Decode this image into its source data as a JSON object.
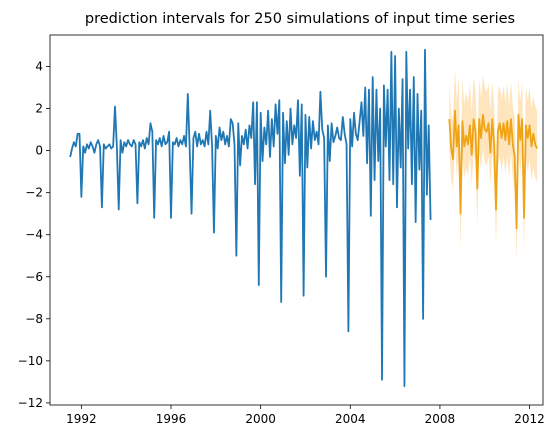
{
  "chart_data": {
    "type": "line",
    "title": "prediction intervals for 250 simulations of input time series",
    "xlabel": "",
    "ylabel": "",
    "x_ticks": [
      1992,
      1996,
      2000,
      2004,
      2008,
      2012
    ],
    "y_ticks": [
      4,
      2,
      0,
      -2,
      -4,
      -6,
      -8,
      -10,
      -12
    ],
    "xlim": [
      1990.6,
      2012.6
    ],
    "ylim": [
      -12.1,
      5.5
    ],
    "grid": false,
    "history": {
      "color": "#1f77b4",
      "start": 1991.5,
      "step": 0.0833333,
      "values": [
        -0.3,
        0.1,
        0.4,
        0.2,
        0.8,
        0.8,
        -2.2,
        0.2,
        -0.1,
        0.3,
        0.1,
        0.4,
        0.2,
        -0.1,
        0.3,
        0.5,
        0.2,
        -2.7,
        0.3,
        0.1,
        0.2,
        0.3,
        0.1,
        0.2,
        2.1,
        0.2,
        -2.8,
        0.5,
        -0.1,
        0.4,
        0.2,
        0.5,
        0.3,
        0.2,
        0.5,
        0.3,
        -2.5,
        0.4,
        0.2,
        0.5,
        0.1,
        0.6,
        0.3,
        1.3,
        0.9,
        -3.2,
        0.5,
        0.3,
        0.6,
        0.2,
        0.7,
        0.3,
        0.4,
        0.9,
        -3.2,
        0.4,
        0.3,
        0.6,
        0.2,
        0.5,
        0.3,
        0.7,
        0.2,
        2.7,
        0.1,
        -3.0,
        0.6,
        0.9,
        0.2,
        0.8,
        0.3,
        0.5,
        0.2,
        0.9,
        0.3,
        1.9,
        0.2,
        -3.9,
        0.7,
        0.1,
        1.1,
        0.5,
        0.9,
        0.3,
        0.7,
        0.2,
        1.5,
        1.3,
        0.3,
        -5.0,
        1.3,
        -0.7,
        0.7,
        0.3,
        1.0,
        0.1,
        1.2,
        0.6,
        2.3,
        -1.6,
        2.3,
        -6.4,
        1.8,
        -0.5,
        1.1,
        0.3,
        1.9,
        -0.3,
        1.5,
        0.2,
        2.2,
        0.8,
        2.4,
        -7.2,
        1.8,
        -0.6,
        1.4,
        -0.2,
        2.0,
        0.3,
        1.2,
        0.6,
        2.4,
        -1.2,
        2.2,
        -6.9,
        1.7,
        -0.8,
        1.6,
        0.1,
        1.4,
        0.5,
        0.9,
        0.3,
        2.8,
        1.0,
        0.6,
        -6.0,
        1.2,
        -0.5,
        1.3,
        0.4,
        0.7,
        1.1,
        0.6,
        0.5,
        1.6,
        0.8,
        0.3,
        -8.6,
        1.5,
        0.2,
        1.8,
        0.8,
        0.5,
        1.4,
        2.3,
        0.7,
        3.0,
        -0.6,
        2.9,
        -3.1,
        3.5,
        -1.4,
        2.9,
        -0.5,
        2.0,
        -10.9,
        3.1,
        0.2,
        2.9,
        -1.4,
        4.7,
        -1.6,
        4.5,
        -2.7,
        2.0,
        -0.8,
        3.4,
        -11.2,
        4.7,
        0.1,
        2.9,
        -1.6,
        3.5,
        -3.4,
        2.7,
        -0.9,
        1.9,
        -8.0,
        4.8,
        -2.1,
        1.2,
        -3.3
      ]
    },
    "forecast": {
      "color": "#f0a314",
      "band_color": "#ffe0b2",
      "start": 2008.42,
      "step": 0.0833333,
      "mean": [
        1.5,
        0.1,
        -0.4,
        1.9,
        0.2,
        1.2,
        -3.0,
        1.4,
        0.2,
        0.7,
        0.3,
        1.2,
        -0.2,
        1.5,
        0.9,
        -1.8,
        1.5,
        0.6,
        1.7,
        1.0,
        0.9,
        1.3,
        -0.1,
        1.5,
        0.3,
        -2.8,
        0.9,
        1.3,
        0.6,
        1.3,
        0.5,
        1.4,
        0.3,
        1.5,
        0.3,
        -0.3,
        -3.7,
        1.7,
        0.5,
        1.5,
        -3.2,
        1.2,
        0.6,
        1.2,
        0.2,
        0.8,
        0.3,
        0.1
      ],
      "lower": [
        0.0,
        -1.4,
        -1.8,
        0.4,
        -1.2,
        -0.3,
        -4.8,
        -0.1,
        -1.3,
        -0.8,
        -1.2,
        -0.3,
        -1.7,
        0.0,
        -0.6,
        -3.6,
        0.0,
        -0.9,
        0.1,
        -0.6,
        -0.7,
        -0.3,
        -1.7,
        -0.1,
        -1.3,
        -4.6,
        -0.7,
        -0.3,
        -1.0,
        -0.3,
        -1.1,
        -0.2,
        -1.3,
        -0.1,
        -1.3,
        -1.9,
        -5.3,
        0.1,
        -1.1,
        -0.1,
        -4.9,
        -0.4,
        -1.0,
        -0.4,
        -1.4,
        -0.8,
        -1.3,
        -1.5
      ],
      "upper": [
        3.1,
        1.8,
        1.4,
        3.9,
        2.4,
        3.6,
        -0.9,
        3.4,
        2.2,
        2.8,
        2.3,
        3.2,
        1.8,
        3.5,
        2.9,
        0.1,
        3.4,
        2.5,
        3.6,
        3.0,
        2.8,
        3.2,
        1.9,
        3.3,
        2.1,
        -0.9,
        2.8,
        3.1,
        2.4,
        3.1,
        2.3,
        3.2,
        2.1,
        3.3,
        2.1,
        1.5,
        -1.9,
        3.4,
        2.3,
        3.3,
        -1.4,
        3.0,
        2.4,
        3.0,
        2.0,
        2.6,
        2.1,
        1.9
      ]
    }
  }
}
